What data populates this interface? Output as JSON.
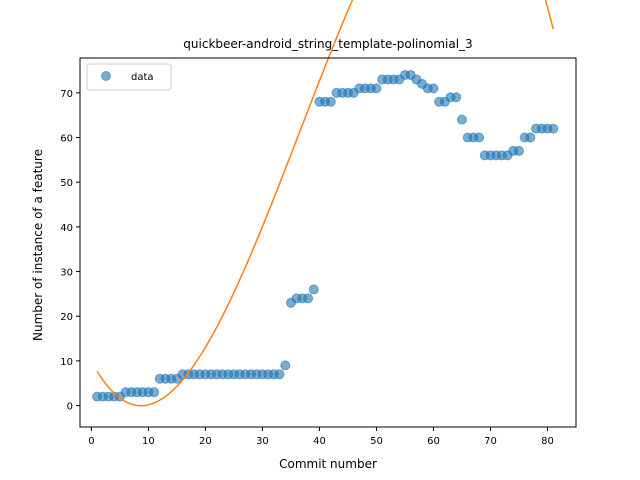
{
  "chart_data": {
    "type": "scatter",
    "title": "quickbeer-android_string_template-polinomial_3",
    "xlabel": "Commit number",
    "ylabel": "Number of instance of a feature",
    "xlim": [
      -2.0,
      85.0
    ],
    "ylim": [
      -4.8,
      77.8
    ],
    "xticks": [
      0,
      10,
      20,
      30,
      40,
      50,
      60,
      70,
      80
    ],
    "yticks": [
      0,
      10,
      20,
      30,
      40,
      50,
      60,
      70
    ],
    "legend": {
      "position": "top-left",
      "entries": [
        "data"
      ]
    },
    "colors": {
      "data": "#1f77b4",
      "fit": "#ff7f0e"
    },
    "series": [
      {
        "name": "data",
        "kind": "scatter",
        "x": [
          1,
          2,
          3,
          4,
          5,
          6,
          7,
          8,
          9,
          10,
          11,
          12,
          13,
          14,
          15,
          16,
          17,
          18,
          19,
          20,
          21,
          22,
          23,
          24,
          25,
          26,
          27,
          28,
          29,
          30,
          31,
          32,
          33,
          34,
          35,
          36,
          37,
          38,
          39,
          40,
          41,
          42,
          43,
          44,
          45,
          46,
          47,
          48,
          49,
          50,
          51,
          52,
          53,
          54,
          55,
          56,
          57,
          58,
          59,
          60,
          61,
          62,
          63,
          64,
          65,
          66,
          67,
          68,
          69,
          70,
          71,
          72,
          73,
          74,
          75,
          76,
          77,
          78,
          79,
          80,
          81
        ],
        "y": [
          2,
          2,
          2,
          2,
          2,
          3,
          3,
          3,
          3,
          3,
          3,
          6,
          6,
          6,
          6,
          7,
          7,
          7,
          7,
          7,
          7,
          7,
          7,
          7,
          7,
          7,
          7,
          7,
          7,
          7,
          7,
          7,
          7,
          9,
          23,
          24,
          24,
          24,
          26,
          68,
          68,
          68,
          70,
          70,
          70,
          70,
          71,
          71,
          71,
          71,
          73,
          73,
          73,
          73,
          74,
          74,
          73,
          72,
          71,
          71,
          68,
          68,
          69,
          69,
          64,
          60,
          60,
          60,
          56,
          56,
          56,
          56,
          56,
          57,
          57,
          60,
          60,
          62,
          62,
          62,
          62
        ]
      },
      {
        "kind": "line",
        "x_range": [
          1,
          81
        ],
        "poly_coeffs": [
          9.91,
          -2.39,
          0.1557,
          -0.001418
        ]
      }
    ]
  }
}
